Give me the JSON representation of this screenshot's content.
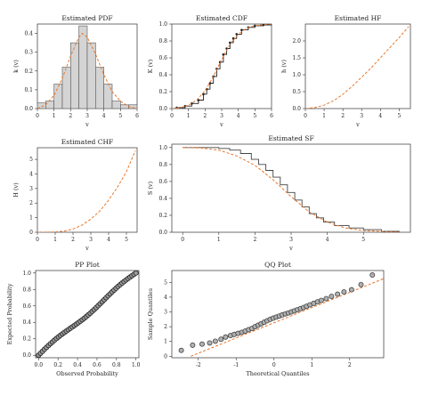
{
  "chart_data": [
    {
      "id": "pdf",
      "type": "bar",
      "title": "Estimated PDF",
      "xlabel": "v",
      "ylabel": "k (v)",
      "xlim": [
        0,
        6
      ],
      "ylim": [
        0,
        0.45
      ],
      "xticks": [
        0,
        1,
        2,
        3,
        4,
        5,
        6
      ],
      "yticks": [
        0,
        0.1,
        0.2,
        0.3,
        0.4
      ],
      "ytick_labels": [
        "0.0",
        "0.1",
        "0.2",
        "0.3",
        "0.4"
      ],
      "bins": [
        {
          "x0": 0.0,
          "x1": 0.5,
          "value": 0.03
        },
        {
          "x0": 0.5,
          "x1": 1.0,
          "value": 0.04
        },
        {
          "x0": 1.0,
          "x1": 1.5,
          "value": 0.13
        },
        {
          "x0": 1.5,
          "x1": 2.0,
          "value": 0.22
        },
        {
          "x0": 2.0,
          "x1": 2.5,
          "value": 0.35
        },
        {
          "x0": 2.5,
          "x1": 3.0,
          "value": 0.44
        },
        {
          "x0": 3.0,
          "x1": 3.5,
          "value": 0.35
        },
        {
          "x0": 3.5,
          "x1": 4.0,
          "value": 0.22
        },
        {
          "x0": 4.0,
          "x1": 4.5,
          "value": 0.13
        },
        {
          "x0": 4.5,
          "x1": 5.0,
          "value": 0.04
        },
        {
          "x0": 5.0,
          "x1": 5.5,
          "value": 0.02
        },
        {
          "x0": 5.5,
          "x1": 6.0,
          "value": 0.02
        }
      ],
      "fitted_curve": {
        "x": [
          0,
          0.5,
          1,
          1.5,
          2,
          2.5,
          2.7,
          3,
          3.5,
          4,
          4.5,
          5,
          5.5,
          6
        ],
        "y": [
          0.0,
          0.02,
          0.07,
          0.16,
          0.28,
          0.38,
          0.4,
          0.38,
          0.29,
          0.18,
          0.09,
          0.04,
          0.01,
          0.0
        ]
      },
      "colors": {
        "bar": "#d4d4d4",
        "curve": "#e8772e"
      }
    },
    {
      "id": "cdf",
      "type": "line",
      "title": "Estimated CDF",
      "xlabel": "v",
      "ylabel": "K (v)",
      "xlim": [
        0,
        6
      ],
      "ylim": [
        0,
        1
      ],
      "xticks": [
        0,
        1,
        2,
        3,
        4,
        5,
        6
      ],
      "yticks": [
        0,
        0.2,
        0.4,
        0.6,
        0.8,
        1.0
      ],
      "ytick_labels": [
        "0.0",
        "0.2",
        "0.4",
        "0.6",
        "0.8",
        "1.0"
      ],
      "empirical": {
        "x": [
          0.3,
          0.8,
          1.2,
          1.6,
          1.9,
          2.1,
          2.3,
          2.5,
          2.7,
          2.9,
          3.1,
          3.3,
          3.5,
          3.7,
          3.9,
          4.2,
          4.6,
          5.0,
          5.5,
          6.0
        ],
        "y": [
          0.01,
          0.03,
          0.06,
          0.1,
          0.17,
          0.23,
          0.3,
          0.38,
          0.47,
          0.55,
          0.64,
          0.71,
          0.78,
          0.83,
          0.88,
          0.93,
          0.96,
          0.98,
          0.99,
          1.0
        ]
      },
      "fitted_curve": {
        "x": [
          0,
          0.5,
          1,
          1.5,
          2,
          2.5,
          3,
          3.5,
          4,
          4.5,
          5,
          5.5,
          6
        ],
        "y": [
          0.0,
          0.01,
          0.04,
          0.1,
          0.21,
          0.38,
          0.58,
          0.76,
          0.88,
          0.95,
          0.98,
          0.995,
          1.0
        ]
      },
      "colors": {
        "empirical": "#222222",
        "curve": "#e8772e"
      }
    },
    {
      "id": "hf",
      "type": "line",
      "title": "Estimated HF",
      "xlabel": "v",
      "ylabel": "h (v)",
      "xlim": [
        0,
        5.6
      ],
      "ylim": [
        0,
        2.5
      ],
      "xticks": [
        0,
        1,
        2,
        3,
        4,
        5
      ],
      "yticks": [
        0,
        0.5,
        1.0,
        1.5,
        2.0
      ],
      "ytick_labels": [
        "0.0",
        "0.5",
        "1.0",
        "1.5",
        "2.0"
      ],
      "fitted_curve": {
        "x": [
          0,
          0.5,
          1,
          1.5,
          2,
          2.5,
          3,
          3.5,
          4,
          4.5,
          5,
          5.5
        ],
        "y": [
          0.0,
          0.03,
          0.1,
          0.23,
          0.42,
          0.66,
          0.93,
          1.2,
          1.5,
          1.8,
          2.1,
          2.42
        ]
      },
      "colors": {
        "curve": "#e8772e"
      }
    },
    {
      "id": "chf",
      "type": "line",
      "title": "Estimated CHF",
      "xlabel": "v",
      "ylabel": "H (v)",
      "xlim": [
        0,
        5.6
      ],
      "ylim": [
        0,
        5.8
      ],
      "xticks": [
        0,
        1,
        2,
        3,
        4,
        5
      ],
      "yticks": [
        0,
        1,
        2,
        3,
        4,
        5
      ],
      "ytick_labels": [
        "0",
        "1",
        "2",
        "3",
        "4",
        "5"
      ],
      "fitted_curve": {
        "x": [
          0,
          0.5,
          1,
          1.5,
          2,
          2.5,
          3,
          3.5,
          4,
          4.5,
          5,
          5.5
        ],
        "y": [
          0.0,
          0.0,
          0.02,
          0.08,
          0.22,
          0.48,
          0.9,
          1.45,
          2.2,
          3.1,
          4.15,
          5.6
        ]
      },
      "colors": {
        "curve": "#e8772e"
      }
    },
    {
      "id": "sf",
      "type": "line",
      "title": "Estimated SF",
      "xlabel": "v",
      "ylabel": "S (v)",
      "xlim": [
        -0.3,
        6.3
      ],
      "ylim": [
        0,
        1.04
      ],
      "xticks": [
        0,
        1,
        2,
        3,
        4,
        5
      ],
      "yticks": [
        0,
        0.2,
        0.4,
        0.6,
        0.8,
        1.0
      ],
      "ytick_labels": [
        "0.0",
        "0.2",
        "0.4",
        "0.6",
        "0.8",
        "1.0"
      ],
      "empirical": {
        "x": [
          0,
          0.5,
          1,
          1.3,
          1.6,
          1.9,
          2.1,
          2.3,
          2.5,
          2.7,
          2.9,
          3.1,
          3.3,
          3.5,
          3.7,
          3.9,
          4.2,
          4.6,
          5.0,
          5.5,
          6.0
        ],
        "y": [
          1.0,
          1.0,
          0.99,
          0.97,
          0.93,
          0.86,
          0.8,
          0.73,
          0.65,
          0.56,
          0.47,
          0.38,
          0.3,
          0.22,
          0.17,
          0.12,
          0.08,
          0.05,
          0.03,
          0.01,
          0.01
        ]
      },
      "fitted_curve": {
        "x": [
          0,
          0.5,
          1,
          1.5,
          2,
          2.5,
          3,
          3.5,
          4,
          4.5,
          5,
          5.5,
          6
        ],
        "y": [
          1.0,
          0.995,
          0.97,
          0.9,
          0.79,
          0.62,
          0.42,
          0.24,
          0.12,
          0.05,
          0.02,
          0.01,
          0.0
        ]
      },
      "colors": {
        "empirical": "#444444",
        "curve": "#e8772e"
      }
    },
    {
      "id": "pp",
      "type": "scatter",
      "title": "PP Plot",
      "xlabel": "Observed Probability",
      "ylabel": "Expected Probability",
      "xlim": [
        -0.03,
        1.03
      ],
      "ylim": [
        -0.03,
        1.03
      ],
      "xticks": [
        0,
        0.2,
        0.4,
        0.6,
        0.8,
        1.0
      ],
      "yticks": [
        0,
        0.2,
        0.4,
        0.6,
        0.8,
        1.0
      ],
      "tick_labels": [
        "0.0",
        "0.2",
        "0.4",
        "0.6",
        "0.8",
        "1.0"
      ],
      "n_points": 50,
      "deviation": 0.02,
      "colors": {
        "point_fill": "#9a9a9a",
        "point_stroke": "#222222"
      }
    },
    {
      "id": "qq",
      "type": "scatter",
      "title": "QQ Plot",
      "xlabel": "Theoretical Quantiles",
      "ylabel": "Sample Quantiles",
      "xlim": [
        -2.7,
        2.9
      ],
      "ylim": [
        -0.1,
        5.8
      ],
      "xticks": [
        -2,
        -1,
        0,
        1,
        2
      ],
      "yticks": [
        0,
        1,
        2,
        3,
        4,
        5
      ],
      "points": {
        "x": [
          -2.45,
          -2.15,
          -1.9,
          -1.7,
          -1.55,
          -1.4,
          -1.28,
          -1.15,
          -1.05,
          -0.95,
          -0.85,
          -0.76,
          -0.67,
          -0.58,
          -0.5,
          -0.42,
          -0.34,
          -0.26,
          -0.18,
          -0.1,
          -0.02,
          0.06,
          0.14,
          0.22,
          0.3,
          0.38,
          0.46,
          0.54,
          0.62,
          0.7,
          0.78,
          0.86,
          0.95,
          1.05,
          1.15,
          1.25,
          1.38,
          1.52,
          1.68,
          1.85,
          2.05,
          2.3,
          2.6
        ],
        "y": [
          0.4,
          0.75,
          0.82,
          0.9,
          1.02,
          1.15,
          1.3,
          1.4,
          1.48,
          1.55,
          1.62,
          1.7,
          1.8,
          1.88,
          2.0,
          2.1,
          2.2,
          2.3,
          2.4,
          2.5,
          2.58,
          2.65,
          2.72,
          2.8,
          2.87,
          2.93,
          3.0,
          3.07,
          3.15,
          3.22,
          3.3,
          3.38,
          3.48,
          3.58,
          3.68,
          3.78,
          3.9,
          4.05,
          4.2,
          4.35,
          4.5,
          4.85,
          5.5
        ]
      },
      "reference_line": {
        "x": [
          -2.2,
          2.9
        ],
        "y": [
          0.0,
          5.25
        ]
      },
      "colors": {
        "point_fill": "#b0b0b0",
        "point_stroke": "#333333",
        "line": "#e8772e"
      }
    }
  ]
}
